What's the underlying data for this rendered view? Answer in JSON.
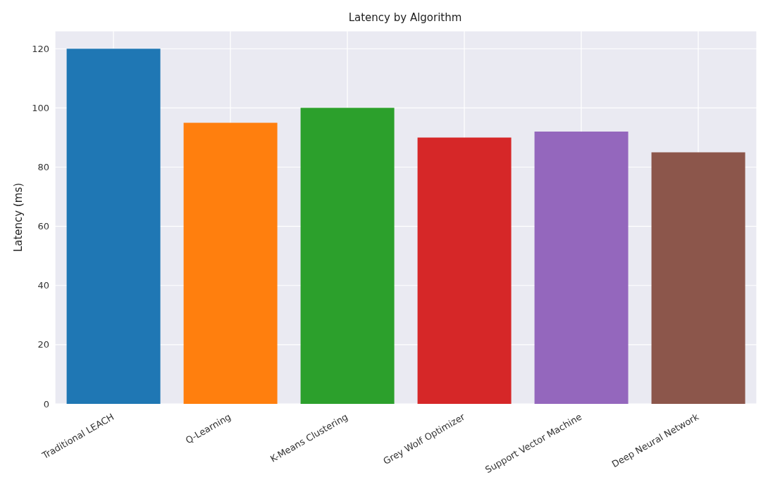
{
  "chart_data": {
    "type": "bar",
    "title": "Latency by Algorithm",
    "ylabel": "Latency (ms)",
    "categories": [
      "Traditional LEACH",
      "Q-Learning",
      "K-Means Clustering",
      "Grey Wolf Optimizer",
      "Support Vector Machine",
      "Deep Neural Network"
    ],
    "values": [
      120,
      95,
      100,
      90,
      92,
      85
    ],
    "colors": [
      "#1f77b4",
      "#ff7f0e",
      "#2ca02c",
      "#d62728",
      "#9467bd",
      "#8c564b"
    ],
    "ylim": [
      0,
      126
    ],
    "yticks": [
      0,
      20,
      40,
      60,
      80,
      100,
      120
    ],
    "grid": true
  }
}
